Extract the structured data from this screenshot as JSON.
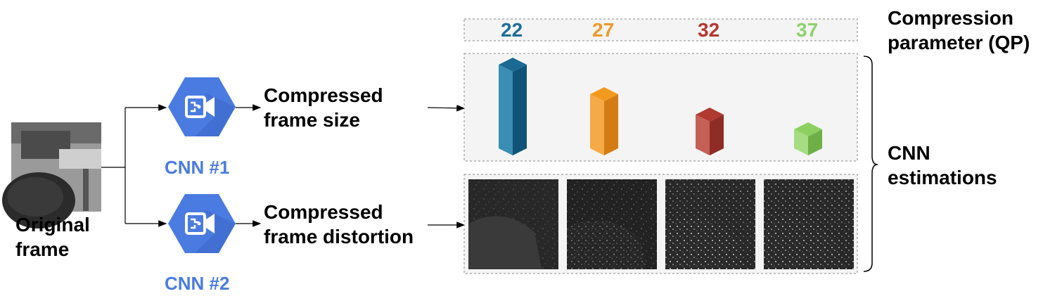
{
  "input": {
    "label_line1": "Original",
    "label_line2": "frame"
  },
  "networks": [
    {
      "label": "CNN #1",
      "output_line1": "Compressed",
      "output_line2": "frame size"
    },
    {
      "label": "CNN #2",
      "output_line1": "Compressed",
      "output_line2": "frame distortion"
    }
  ],
  "qp_values": [
    {
      "value": "22",
      "color": "#1f6e96"
    },
    {
      "value": "27",
      "color": "#ef9a2c"
    },
    {
      "value": "32",
      "color": "#b5372e"
    },
    {
      "value": "37",
      "color": "#8fd16b"
    }
  ],
  "right_labels": {
    "qp_line1": "Compression",
    "qp_line2": "parameter (QP)",
    "est_line1": "CNN",
    "est_line2": "estimations"
  },
  "bar_relative_sizes": [
    1.0,
    0.68,
    0.46,
    0.22
  ],
  "colors": {
    "cnn_hex": "#4a7be0",
    "panel_bg": "#f4f4f4",
    "panel_border": "#888888"
  },
  "icons": {
    "cnn": "hexagon-camera-icon",
    "brace": "right-brace-icon"
  }
}
